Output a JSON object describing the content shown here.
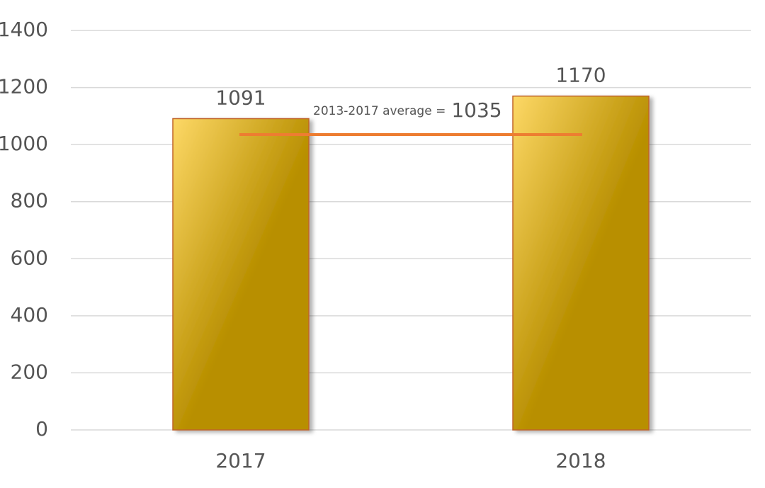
{
  "chart_data": {
    "type": "bar",
    "categories": [
      "2017",
      "2018"
    ],
    "values": [
      1091,
      1170
    ],
    "color": "#b88f00",
    "ylim": [
      0,
      1400
    ],
    "yticks": [
      0,
      200,
      400,
      600,
      800,
      1000,
      1200,
      1400
    ],
    "grid": true,
    "annotation": {
      "label": "2013-2017 average =",
      "value": 1035,
      "color": "#ed7d31"
    }
  }
}
